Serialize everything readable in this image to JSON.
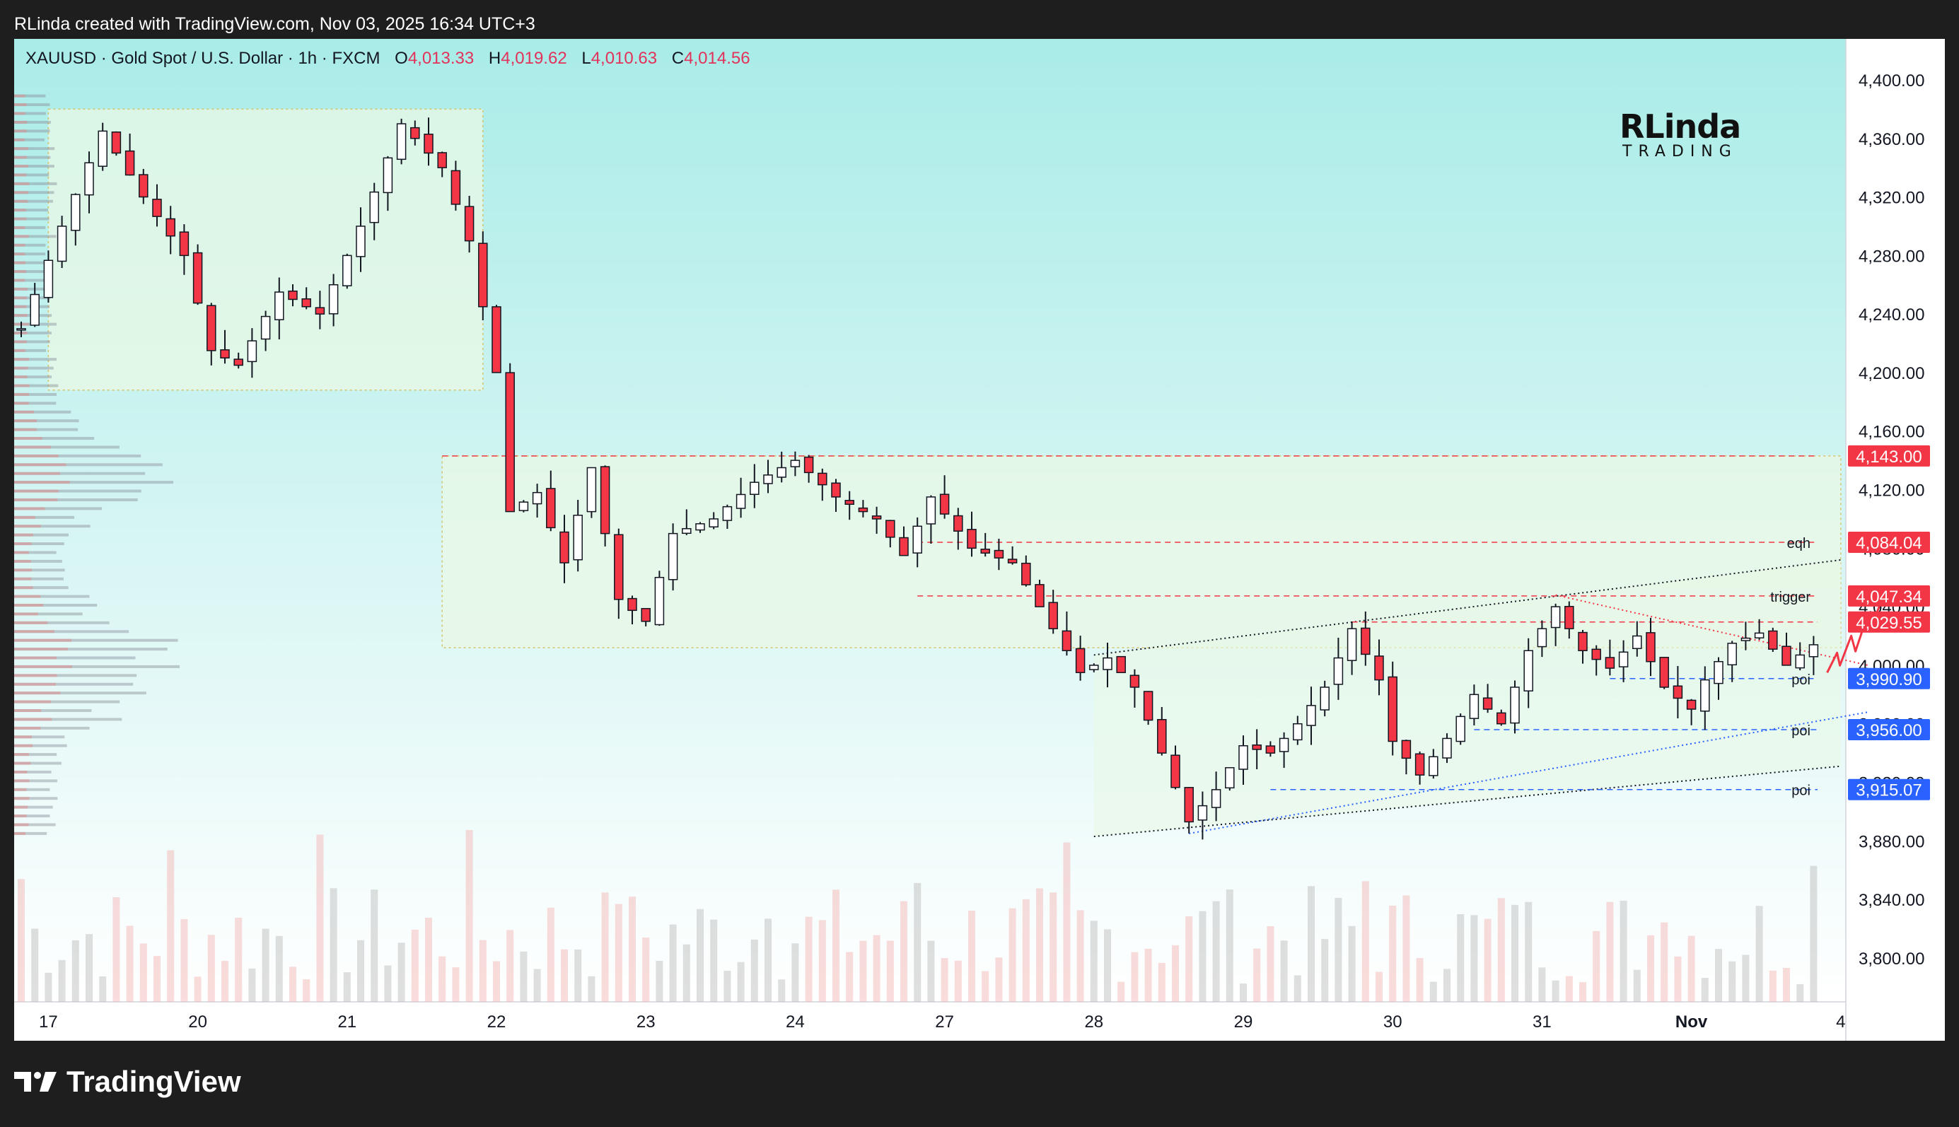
{
  "header": {
    "caption": "RLinda created with TradingView.com, Nov 03, 2025 16:34 UTC+3"
  },
  "legend": {
    "symbol": "XAUUSD · Gold Spot / U.S. Dollar · 1h · FXCM",
    "open_label": "O",
    "open": "4,013.33",
    "high_label": "H",
    "high": "4,019.62",
    "low_label": "L",
    "low": "4,010.63",
    "close_label": "C",
    "close": "4,014.56"
  },
  "brand": {
    "line1": "RLinda",
    "line2": "TRADING"
  },
  "footer": {
    "brand": "TradingView",
    "logo_icon": "tradingview-logo-icon"
  },
  "colors": {
    "up": "#26a69a",
    "down": "#ef5350",
    "candle_body_up": "#ffffff",
    "candle_body_down": "#f23645",
    "candle_edge": "#131722",
    "level_red": "#f23645",
    "level_blue": "#2962ff",
    "zone_fill": "#eaf8e6",
    "arrow": "#f23645"
  },
  "chart_data": {
    "type": "candlestick",
    "title": "XAUUSD · Gold Spot / U.S. Dollar · 1h · FXCM",
    "ylim": [
      3770,
      4428
    ],
    "y_ticks": [
      "3,800.00",
      "3,840.00",
      "3,880.00",
      "3,920.00",
      "3,960.00",
      "4,000.00",
      "4,040.00",
      "4,080.00",
      "4,120.00",
      "4,160.00",
      "4,200.00",
      "4,240.00",
      "4,280.00",
      "4,320.00",
      "4,360.00",
      "4,400.00"
    ],
    "y_tick_values": [
      3800,
      3840,
      3880,
      3920,
      3960,
      4000,
      4040,
      4080,
      4120,
      4160,
      4200,
      4240,
      4280,
      4320,
      4360,
      4400
    ],
    "x_ticks": [
      "17",
      "20",
      "21",
      "22",
      "23",
      "24",
      "27",
      "28",
      "29",
      "30",
      "31",
      "Nov",
      "4"
    ],
    "x_tick_index": [
      2,
      13,
      24,
      35,
      46,
      57,
      68,
      79,
      90,
      101,
      112,
      123,
      134
    ],
    "bar_count": 138,
    "close_path": [
      [
        0,
        4230
      ],
      [
        3,
        4300
      ],
      [
        6,
        4365
      ],
      [
        9,
        4320
      ],
      [
        12,
        4280
      ],
      [
        14,
        4215
      ],
      [
        16,
        4205
      ],
      [
        19,
        4255
      ],
      [
        22,
        4240
      ],
      [
        25,
        4300
      ],
      [
        28,
        4370
      ],
      [
        31,
        4340
      ],
      [
        33,
        4290
      ],
      [
        35,
        4200
      ],
      [
        36,
        4105
      ],
      [
        38,
        4118
      ],
      [
        40,
        4070
      ],
      [
        42,
        4135
      ],
      [
        44,
        4045
      ],
      [
        46,
        4030
      ],
      [
        48,
        4090
      ],
      [
        51,
        4100
      ],
      [
        54,
        4125
      ],
      [
        57,
        4140
      ],
      [
        60,
        4115
      ],
      [
        63,
        4100
      ],
      [
        65,
        4075
      ],
      [
        67,
        4115
      ],
      [
        70,
        4080
      ],
      [
        73,
        4070
      ],
      [
        76,
        4025
      ],
      [
        78,
        3995
      ],
      [
        80,
        4005
      ],
      [
        82,
        3985
      ],
      [
        84,
        3940
      ],
      [
        86,
        3893
      ],
      [
        88,
        3915
      ],
      [
        90,
        3945
      ],
      [
        92,
        3940
      ],
      [
        94,
        3960
      ],
      [
        96,
        3985
      ],
      [
        98,
        4025
      ],
      [
        100,
        3990
      ],
      [
        101,
        3948
      ],
      [
        103,
        3925
      ],
      [
        105,
        3950
      ],
      [
        107,
        3980
      ],
      [
        109,
        3960
      ],
      [
        111,
        4010
      ],
      [
        113,
        4040
      ],
      [
        115,
        4010
      ],
      [
        117,
        3998
      ],
      [
        119,
        4020
      ],
      [
        121,
        3985
      ],
      [
        123,
        3970
      ],
      [
        124,
        3990
      ],
      [
        126,
        4015
      ],
      [
        128,
        4022
      ],
      [
        130,
        4000
      ],
      [
        132,
        4014
      ]
    ],
    "volume_profile_note": "",
    "annotations": [
      {
        "price": 4143.0,
        "label": "4,143.00",
        "text": "",
        "color": "red"
      },
      {
        "price": 4084.04,
        "label": "4,084.04",
        "text": "eqh",
        "color": "red"
      },
      {
        "price": 4047.34,
        "label": "4,047.34",
        "text": "trigger",
        "color": "red"
      },
      {
        "price": 4029.55,
        "label": "4,029.55",
        "text": "",
        "color": "red"
      },
      {
        "price": 3990.9,
        "label": "3,990.90",
        "text": "poi",
        "color": "blue"
      },
      {
        "price": 3956.0,
        "label": "3,956.00",
        "text": "poi",
        "color": "blue"
      },
      {
        "price": 3915.07,
        "label": "3,915.07",
        "text": "poi",
        "color": "blue"
      }
    ],
    "zones": [
      {
        "from_index": 2,
        "to_index": 34,
        "low": 4188,
        "high": 4380
      },
      {
        "from_index": 31,
        "to_index": 134,
        "low": 4012,
        "high": 4143
      }
    ],
    "grid": false,
    "legend_position": "top-left"
  }
}
